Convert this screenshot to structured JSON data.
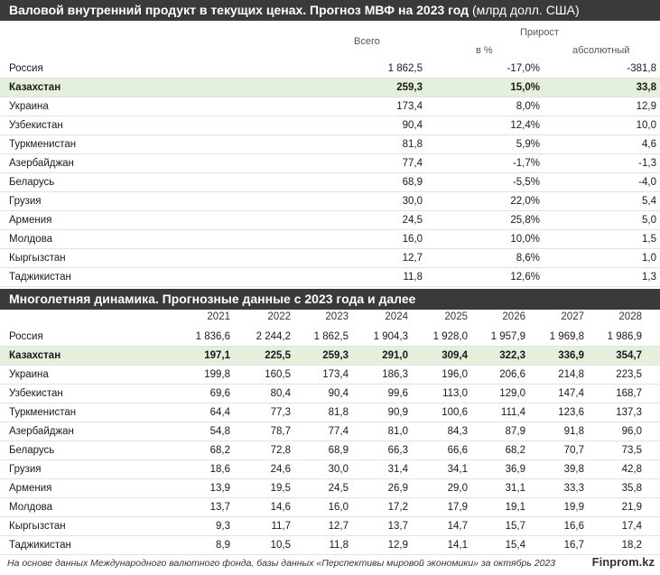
{
  "table1": {
    "title_main": "Валовой внутренний продукт в текущих ценах. Прогноз МВФ на 2023 год",
    "title_unit": " (млрд долл. США)",
    "col_total": "Всего",
    "col_growth": "Прирост",
    "col_pct": "в %",
    "col_abs": "абсолютный",
    "rows": [
      {
        "country": "Россия",
        "total": "1 862,5",
        "pct": "-17,0%",
        "abs": "-381,8"
      },
      {
        "country": "Казахстан",
        "total": "259,3",
        "pct": "15,0%",
        "abs": "33,8",
        "highlight": true
      },
      {
        "country": "Украина",
        "total": "173,4",
        "pct": "8,0%",
        "abs": "12,9"
      },
      {
        "country": "Узбекистан",
        "total": "90,4",
        "pct": "12,4%",
        "abs": "10,0"
      },
      {
        "country": "Туркменистан",
        "total": "81,8",
        "pct": "5,9%",
        "abs": "4,6"
      },
      {
        "country": "Азербайджан",
        "total": "77,4",
        "pct": "-1,7%",
        "abs": "-1,3"
      },
      {
        "country": "Беларусь",
        "total": "68,9",
        "pct": "-5,5%",
        "abs": "-4,0"
      },
      {
        "country": "Грузия",
        "total": "30,0",
        "pct": "22,0%",
        "abs": "5,4"
      },
      {
        "country": "Армения",
        "total": "24,5",
        "pct": "25,8%",
        "abs": "5,0"
      },
      {
        "country": "Молдова",
        "total": "16,0",
        "pct": "10,0%",
        "abs": "1,5"
      },
      {
        "country": "Кыргызстан",
        "total": "12,7",
        "pct": "8,6%",
        "abs": "1,0"
      },
      {
        "country": "Таджикистан",
        "total": "11,8",
        "pct": "12,6%",
        "abs": "1,3"
      }
    ]
  },
  "table2": {
    "title": "Многолетняя динамика. Прогнозные данные с 2023 года и далее",
    "years": [
      "2021",
      "2022",
      "2023",
      "2024",
      "2025",
      "2026",
      "2027",
      "2028"
    ],
    "rows": [
      {
        "country": "Россия",
        "values": [
          "1 836,6",
          "2 244,2",
          "1 862,5",
          "1 904,3",
          "1 928,0",
          "1 957,9",
          "1 969,8",
          "1 986,9"
        ]
      },
      {
        "country": "Казахстан",
        "values": [
          "197,1",
          "225,5",
          "259,3",
          "291,0",
          "309,4",
          "322,3",
          "336,9",
          "354,7"
        ],
        "highlight": true
      },
      {
        "country": "Украина",
        "values": [
          "199,8",
          "160,5",
          "173,4",
          "186,3",
          "196,0",
          "206,6",
          "214,8",
          "223,5"
        ]
      },
      {
        "country": "Узбекистан",
        "values": [
          "69,6",
          "80,4",
          "90,4",
          "99,6",
          "113,0",
          "129,0",
          "147,4",
          "168,7"
        ]
      },
      {
        "country": "Туркменистан",
        "values": [
          "64,4",
          "77,3",
          "81,8",
          "90,9",
          "100,6",
          "111,4",
          "123,6",
          "137,3"
        ]
      },
      {
        "country": "Азербайджан",
        "values": [
          "54,8",
          "78,7",
          "77,4",
          "81,0",
          "84,3",
          "87,9",
          "91,8",
          "96,0"
        ]
      },
      {
        "country": "Беларусь",
        "values": [
          "68,2",
          "72,8",
          "68,9",
          "66,3",
          "66,6",
          "68,2",
          "70,7",
          "73,5"
        ]
      },
      {
        "country": "Грузия",
        "values": [
          "18,6",
          "24,6",
          "30,0",
          "31,4",
          "34,1",
          "36,9",
          "39,8",
          "42,8"
        ]
      },
      {
        "country": "Армения",
        "values": [
          "13,9",
          "19,5",
          "24,5",
          "26,9",
          "29,0",
          "31,1",
          "33,3",
          "35,8"
        ]
      },
      {
        "country": "Молдова",
        "values": [
          "13,7",
          "14,6",
          "16,0",
          "17,2",
          "17,9",
          "19,1",
          "19,9",
          "21,9"
        ]
      },
      {
        "country": "Кыргызстан",
        "values": [
          "9,3",
          "11,7",
          "12,7",
          "13,7",
          "14,7",
          "15,7",
          "16,6",
          "17,4"
        ]
      },
      {
        "country": "Таджикистан",
        "values": [
          "8,9",
          "10,5",
          "11,8",
          "12,9",
          "14,1",
          "15,4",
          "16,7",
          "18,2"
        ]
      }
    ]
  },
  "footer": {
    "source": "На основе данных Международного валютного фонда, базы данных «Перспективы мировой экономики» за октябрь 2023",
    "brand": "Finprom.kz"
  }
}
